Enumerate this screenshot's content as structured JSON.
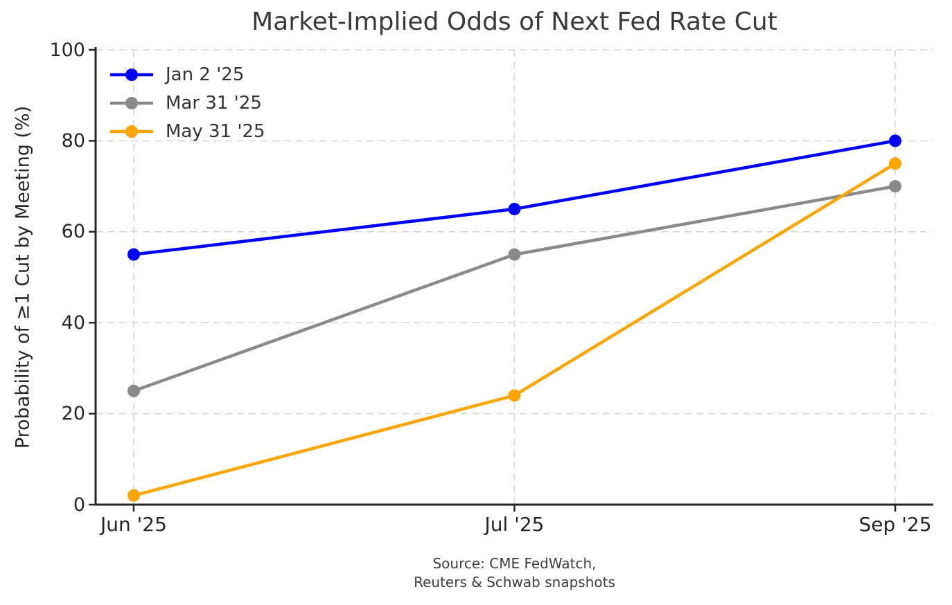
{
  "title": "Market-Implied Odds of Next Fed Rate Cut",
  "colors": {
    "grid": "#d6d6d6",
    "spine": "#262626",
    "tick_label": "#262626",
    "title_text": "#3a3a3a",
    "legend_text": "#333333",
    "source_text": "#3d3d3d",
    "blue": "#0000ff",
    "gray": "#8a8a8a",
    "orange": "#ffa500"
  },
  "chart_data": {
    "type": "line",
    "title": "Market-Implied Odds of Next Fed Rate Cut",
    "xlabel": "",
    "ylabel": "Probability of ≥1 Cut by Meeting (%)",
    "categories": [
      "Jun '25",
      "Jul '25",
      "Sep '25"
    ],
    "series": [
      {
        "name": "Jan 2 '25",
        "color": "#0000ff",
        "values": [
          55,
          65,
          80
        ]
      },
      {
        "name": "Mar 31 '25",
        "color": "#8a8a8a",
        "values": [
          25,
          55,
          70
        ]
      },
      {
        "name": "May 31 '25",
        "color": "#ffa500",
        "values": [
          2,
          24,
          75
        ]
      }
    ],
    "ylim": [
      0,
      100
    ],
    "yticks": [
      0,
      20,
      40,
      60,
      80,
      100
    ],
    "grid": true,
    "grid_style": "dashed",
    "legend_position": "upper left",
    "marker": "circle",
    "source_lines": [
      "Source: CME FedWatch,",
      "Reuters & Schwab snapshots"
    ]
  }
}
